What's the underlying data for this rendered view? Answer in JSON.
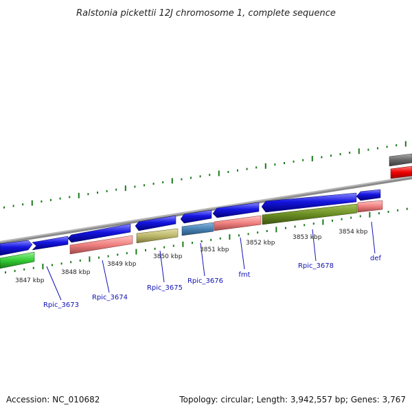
{
  "title": "Ralstonia pickettii 12J chromosome 1, complete sequence",
  "footer": {
    "accession": "Accession: NC_010682",
    "summary": "Topology: circular; Length: 3,942,557 bp; Genes: 3,767"
  },
  "ticks": [
    {
      "label": "3847 kbp"
    },
    {
      "label": "3848 kbp"
    },
    {
      "label": "3849 kbp"
    },
    {
      "label": "3850 kbp"
    },
    {
      "label": "3851 kbp"
    },
    {
      "label": "3852 kbp"
    },
    {
      "label": "3853 kbp"
    },
    {
      "label": "3854 kbp"
    }
  ],
  "gene_labels": [
    "Rpic_3673",
    "Rpic_3674",
    "Rpic_3675",
    "Rpic_3676",
    "fmt",
    "Rpic_3678",
    "def"
  ],
  "colors": {
    "backbone": "#888888",
    "gene_arrow": "#1515e0",
    "cds_green": "#33cc33",
    "cds_salmon": "#f08080",
    "cds_khaki": "#bdb76b",
    "cds_steelblue": "#4682b4",
    "cds_olive": "#6b8e23",
    "cds_red": "#ee0000",
    "cds_gray": "#666666",
    "tick": "#1a7a1a",
    "label_text": "#1010b4"
  }
}
